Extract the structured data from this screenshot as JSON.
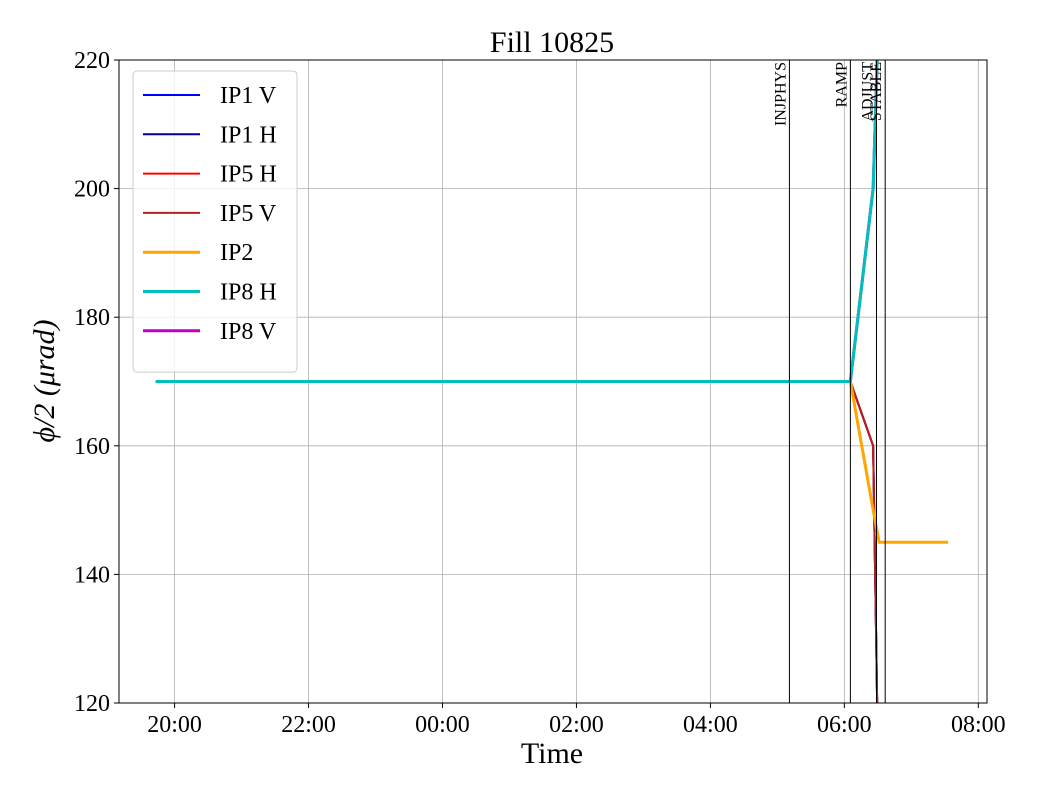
{
  "chart_data": {
    "type": "line",
    "title": "Fill 10825",
    "x_label": "Time",
    "y_label": "ϕ/2 (μrad)",
    "xlim": [
      19.17,
      32.13
    ],
    "ylim": [
      120,
      220
    ],
    "xticks": [
      {
        "value": 20,
        "label": "20:00"
      },
      {
        "value": 22,
        "label": "22:00"
      },
      {
        "value": 24,
        "label": "00:00"
      },
      {
        "value": 26,
        "label": "02:00"
      },
      {
        "value": 28,
        "label": "04:00"
      },
      {
        "value": 30,
        "label": "06:00"
      },
      {
        "value": 32,
        "label": "08:00"
      }
    ],
    "yticks": [
      120,
      140,
      160,
      180,
      200,
      220
    ],
    "grid": true,
    "legend": "upper left",
    "phases": [
      {
        "label": "INJPHYS",
        "x": 29.18
      },
      {
        "label": "RAMP",
        "x": 30.09
      },
      {
        "label": "ADJUST",
        "x": 30.48
      },
      {
        "label": "STABLE",
        "x": 30.61
      }
    ],
    "series": [
      {
        "name": "IP1 V",
        "color": "#0000ff",
        "x": [
          19.72,
          30.09,
          30.43,
          30.49
        ],
        "values": [
          170,
          170,
          160,
          120
        ]
      },
      {
        "name": "IP1 H",
        "color": "#00008b",
        "x": [
          19.72,
          30.09,
          30.43,
          30.49
        ],
        "values": [
          170,
          170,
          160,
          120
        ]
      },
      {
        "name": "IP5 H",
        "color": "#ff0000",
        "x": [
          19.72,
          30.09,
          30.43,
          30.49
        ],
        "values": [
          170,
          170,
          160,
          120
        ]
      },
      {
        "name": "IP5 V",
        "color": "#b22222",
        "x": [
          19.72,
          30.09,
          30.43,
          30.49
        ],
        "values": [
          170,
          170,
          160,
          120
        ]
      },
      {
        "name": "IP2",
        "color": "#ffa500",
        "x": [
          19.72,
          30.09,
          30.43,
          30.52,
          31.55
        ],
        "values": [
          170,
          170,
          150,
          145,
          145
        ]
      },
      {
        "name": "IP8 H",
        "color": "#00bfbf",
        "x": [
          19.72,
          30.09,
          30.43,
          30.49
        ],
        "values": [
          170,
          170,
          200,
          220
        ]
      },
      {
        "name": "IP8 V",
        "color": "#bf00bf",
        "x": [
          19.72,
          30.09,
          30.43,
          30.49
        ],
        "values": [
          170,
          170,
          200,
          220
        ]
      }
    ]
  }
}
